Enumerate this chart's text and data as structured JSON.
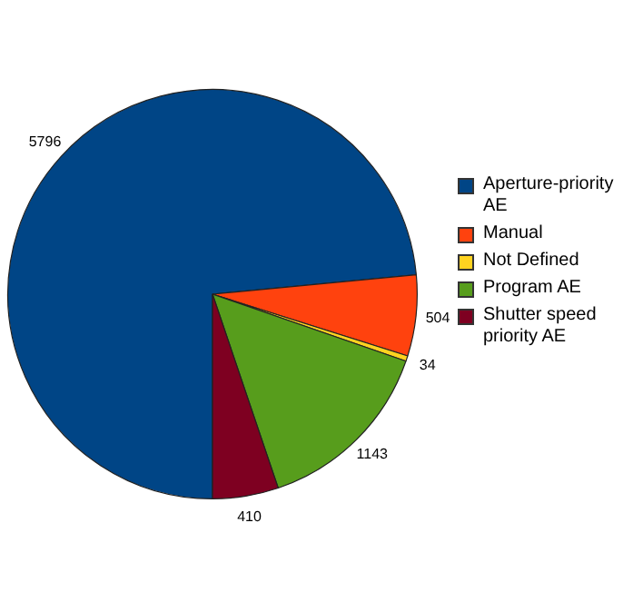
{
  "chart_data": {
    "type": "pie",
    "categories": [
      "Aperture-priority AE",
      "Manual",
      "Not Defined",
      "Program AE",
      "Shutter speed priority AE"
    ],
    "values": [
      5796,
      504,
      34,
      1143,
      410
    ],
    "colors": [
      "#004586",
      "#ff420e",
      "#ffd320",
      "#579d1c",
      "#7e0021"
    ],
    "data_labels": true,
    "legend": "right"
  }
}
